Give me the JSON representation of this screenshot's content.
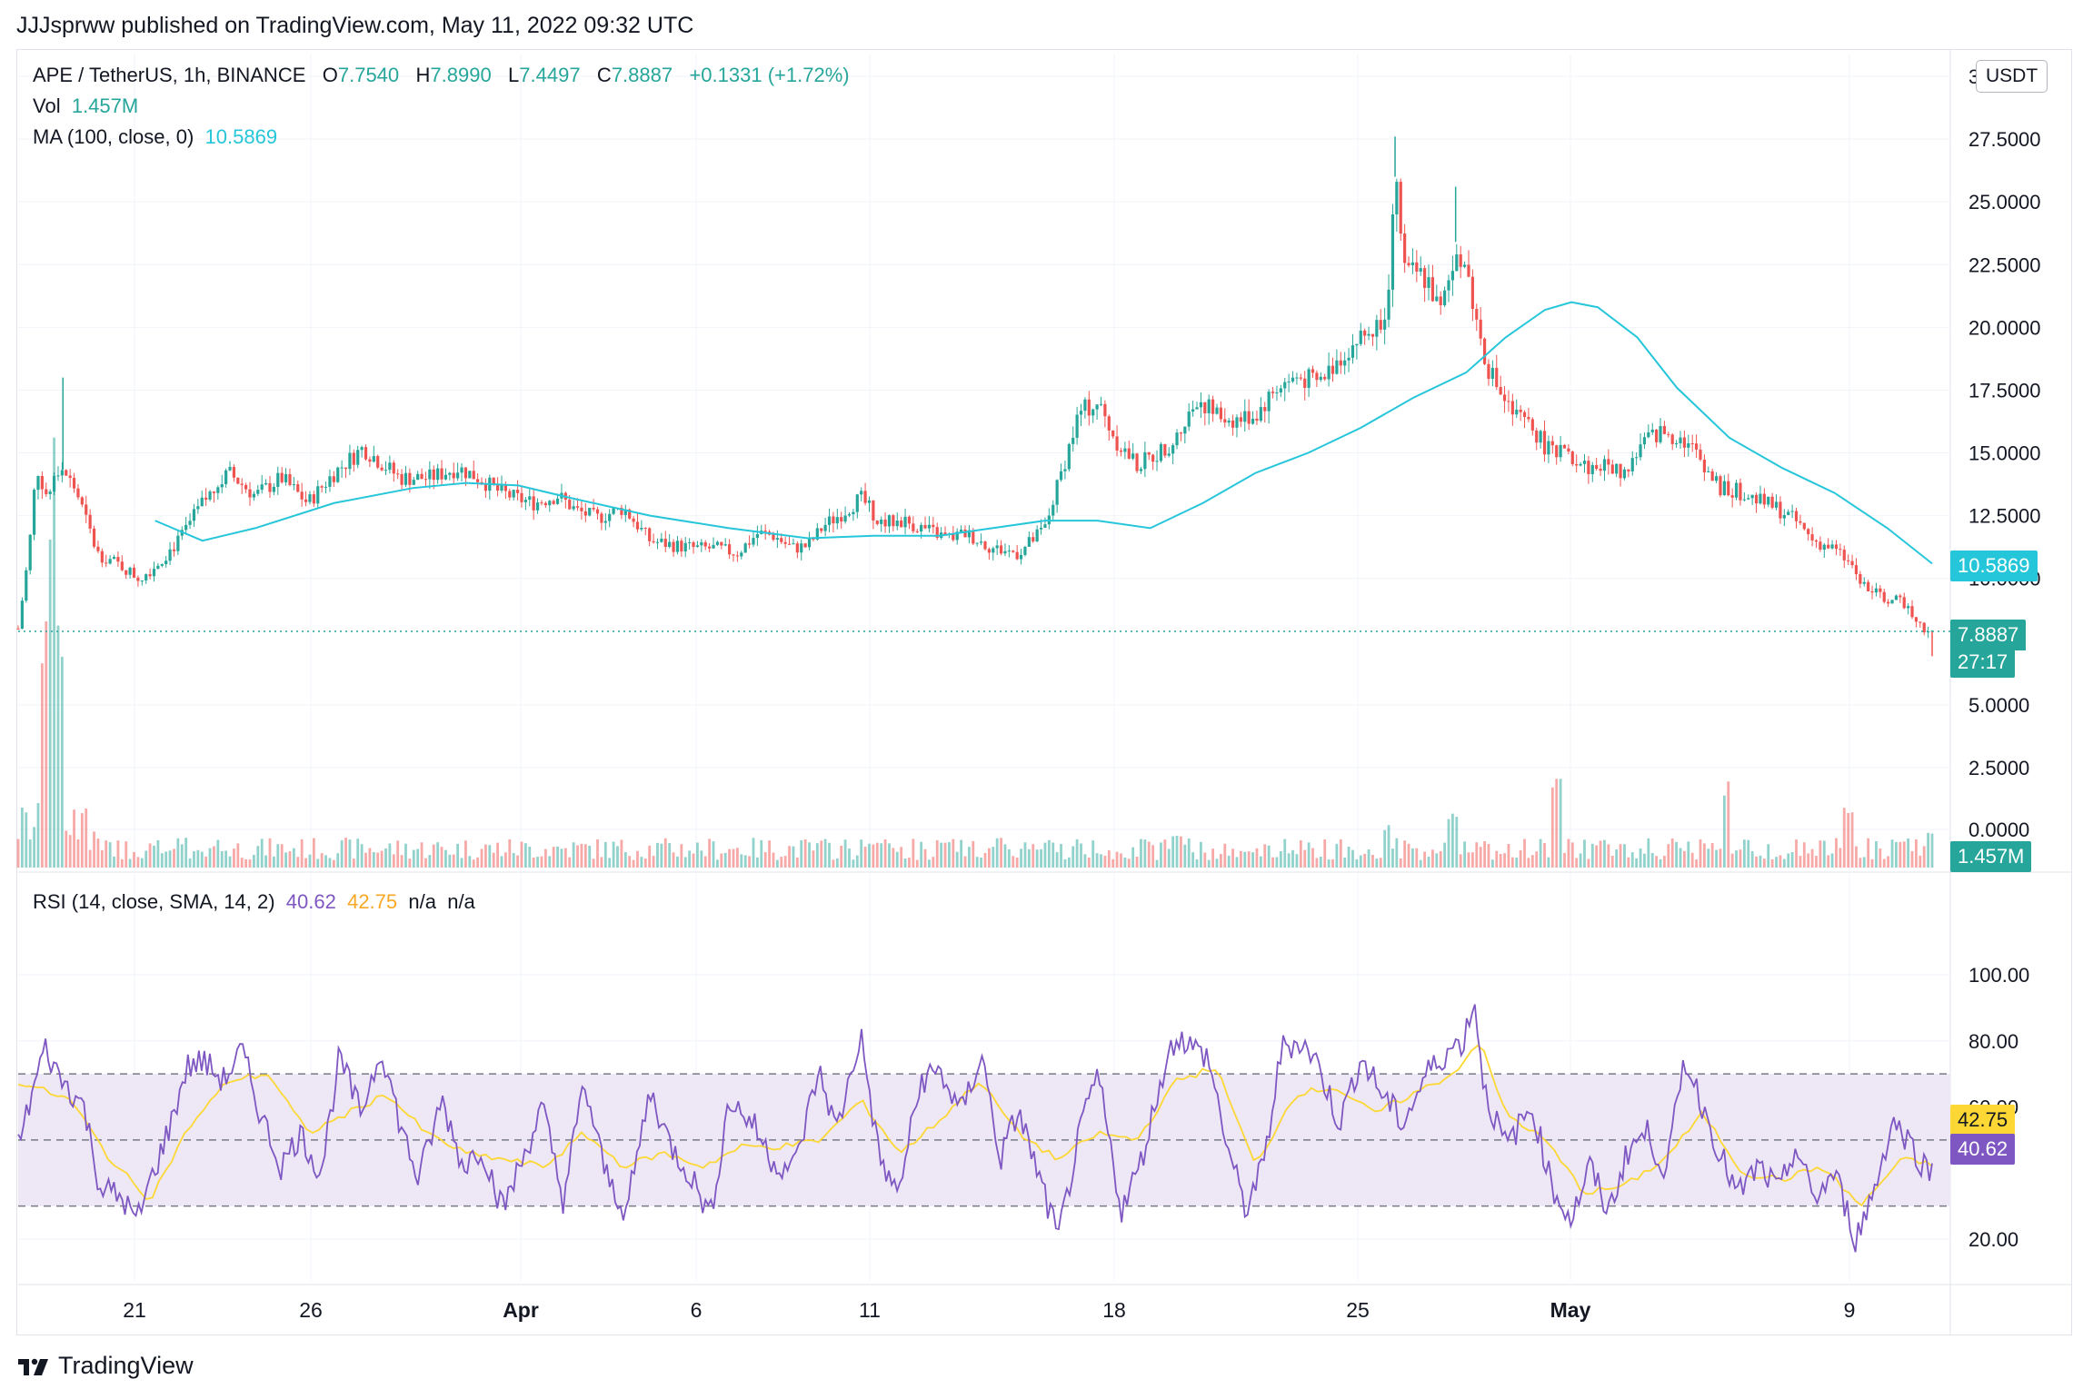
{
  "publisher": "JJJsprww published on TradingView.com, May 11, 2022 09:32 UTC",
  "legend": {
    "symbol": "APE / TetherUS, 1h, BINANCE",
    "o_label": "O",
    "o_value": "7.7540",
    "h_label": "H",
    "h_value": "7.8990",
    "l_label": "L",
    "l_value": "7.4497",
    "c_label": "C",
    "c_value": "7.8887",
    "change": "+0.1331 (+1.72%)",
    "vol_label": "Vol",
    "vol_value": "1.457M",
    "ma_label": "MA (100, close, 0)",
    "ma_value": "10.5869",
    "rsi_label": "RSI (14, close, SMA, 14, 2)",
    "rsi_value": "40.62",
    "rsi_ma_value": "42.75",
    "rsi_na1": "n/a",
    "rsi_na2": "n/a"
  },
  "unit_button": "USDT",
  "price_tags": {
    "ma": "10.5869",
    "last": "7.8887",
    "countdown": "27:17",
    "volume": "1.457M",
    "rsi_ma": "42.75",
    "rsi": "40.62"
  },
  "colors": {
    "up": "#26a69a",
    "down": "#ef5350",
    "ma": "#26c6da",
    "rsi": "#7e57c2",
    "rsi_ma": "#fdd835",
    "rsi_band": "#ede7f6"
  },
  "brand": "TradingView",
  "chart_data": [
    {
      "type": "candlestick",
      "title": "APE / TetherUS, 1h, BINANCE",
      "x_ticks": [
        "21",
        "26",
        "Apr",
        "6",
        "11",
        "18",
        "25",
        "May",
        "9"
      ],
      "y_ticks": [
        "30.0000",
        "27.5000",
        "25.0000",
        "22.5000",
        "20.0000",
        "17.5000",
        "15.0000",
        "12.5000",
        "10.0000",
        "5.0000",
        "2.5000",
        "0.0000"
      ],
      "ylim": [
        3,
        30
      ],
      "close_path": [
        [
          0,
          8
        ],
        [
          8,
          11
        ],
        [
          14,
          14.5
        ],
        [
          22,
          13.2
        ],
        [
          32,
          14.5
        ],
        [
          44,
          13.5
        ],
        [
          60,
          11
        ],
        [
          78,
          10.5
        ],
        [
          92,
          10
        ],
        [
          104,
          10.5
        ],
        [
          122,
          11.5
        ],
        [
          140,
          13
        ],
        [
          160,
          14.2
        ],
        [
          180,
          13.3
        ],
        [
          200,
          14
        ],
        [
          220,
          13
        ],
        [
          240,
          14.2
        ],
        [
          262,
          15.2
        ],
        [
          290,
          14
        ],
        [
          312,
          14
        ],
        [
          334,
          14.4
        ],
        [
          350,
          14
        ],
        [
          364,
          13.5
        ],
        [
          378,
          13.2
        ],
        [
          392,
          13
        ],
        [
          410,
          13.3
        ],
        [
          424,
          12.7
        ],
        [
          440,
          12.4
        ],
        [
          460,
          12.8
        ],
        [
          480,
          11.5
        ],
        [
          500,
          11.3
        ],
        [
          516,
          11.2
        ],
        [
          530,
          11.2
        ],
        [
          546,
          11
        ],
        [
          562,
          11.8
        ],
        [
          574,
          11.7
        ],
        [
          588,
          11.2
        ],
        [
          600,
          11.3
        ],
        [
          612,
          12.1
        ],
        [
          626,
          12.6
        ],
        [
          640,
          13.2
        ],
        [
          656,
          12.2
        ],
        [
          672,
          12.3
        ],
        [
          692,
          11.9
        ],
        [
          706,
          11.6
        ],
        [
          720,
          11.8
        ],
        [
          740,
          11.2
        ],
        [
          760,
          11
        ],
        [
          780,
          12
        ],
        [
          806,
          16.6
        ],
        [
          820,
          17
        ],
        [
          834,
          15.5
        ],
        [
          850,
          14.5
        ],
        [
          866,
          15
        ],
        [
          880,
          15.6
        ],
        [
          896,
          17.2
        ],
        [
          910,
          16.5
        ],
        [
          924,
          16.3
        ],
        [
          940,
          16.5
        ],
        [
          956,
          17.6
        ],
        [
          972,
          18
        ],
        [
          988,
          17.8
        ],
        [
          1004,
          18.8
        ],
        [
          1018,
          19.5
        ],
        [
          1032,
          20
        ],
        [
          1040,
          21
        ],
        [
          1046,
          26
        ],
        [
          1054,
          22
        ],
        [
          1062,
          22.2
        ],
        [
          1072,
          21.8
        ],
        [
          1080,
          20.5
        ],
        [
          1086,
          21.6
        ],
        [
          1092,
          23.4
        ],
        [
          1100,
          22.4
        ],
        [
          1108,
          20.2
        ],
        [
          1116,
          18.5
        ],
        [
          1126,
          17.4
        ],
        [
          1136,
          16.5
        ],
        [
          1150,
          16
        ],
        [
          1164,
          15
        ],
        [
          1178,
          14.9
        ],
        [
          1192,
          14.4
        ],
        [
          1206,
          14.5
        ],
        [
          1220,
          14.2
        ],
        [
          1236,
          15.5
        ],
        [
          1248,
          15.8
        ],
        [
          1264,
          15.6
        ],
        [
          1278,
          14.8
        ],
        [
          1292,
          13.6
        ],
        [
          1306,
          13.5
        ],
        [
          1322,
          13.1
        ],
        [
          1336,
          12.8
        ],
        [
          1350,
          12.3
        ],
        [
          1364,
          11.5
        ],
        [
          1378,
          11.2
        ],
        [
          1392,
          10.6
        ],
        [
          1404,
          9.6
        ],
        [
          1418,
          9.2
        ],
        [
          1434,
          9
        ],
        [
          1448,
          8
        ],
        [
          1454,
          7.89
        ]
      ],
      "ma_100_path": [
        [
          104,
          12.3
        ],
        [
          140,
          11.5
        ],
        [
          180,
          12
        ],
        [
          240,
          13
        ],
        [
          300,
          13.6
        ],
        [
          340,
          13.8
        ],
        [
          380,
          13.7
        ],
        [
          420,
          13.2
        ],
        [
          480,
          12.5
        ],
        [
          540,
          12
        ],
        [
          600,
          11.6
        ],
        [
          650,
          11.7
        ],
        [
          700,
          11.7
        ],
        [
          740,
          12
        ],
        [
          780,
          12.3
        ],
        [
          820,
          12.3
        ],
        [
          860,
          12
        ],
        [
          900,
          13
        ],
        [
          940,
          14.2
        ],
        [
          980,
          15
        ],
        [
          1020,
          16
        ],
        [
          1060,
          17.2
        ],
        [
          1100,
          18.2
        ],
        [
          1130,
          19.6
        ],
        [
          1160,
          20.7
        ],
        [
          1180,
          21
        ],
        [
          1200,
          20.8
        ],
        [
          1230,
          19.6
        ],
        [
          1260,
          17.6
        ],
        [
          1300,
          15.6
        ],
        [
          1340,
          14.4
        ],
        [
          1380,
          13.4
        ],
        [
          1420,
          12
        ],
        [
          1454,
          10.59
        ]
      ],
      "last_price": 7.8887,
      "ma_last": 10.5869
    },
    {
      "type": "bar",
      "title": "Vol",
      "last_value": "1.457M",
      "spikes": [
        [
          20,
          4.5
        ],
        [
          26,
          8
        ],
        [
          32,
          5
        ],
        [
          150,
          1.2
        ],
        [
          650,
          1
        ],
        [
          880,
          1.5
        ],
        [
          1040,
          2.1
        ],
        [
          1090,
          2.3
        ],
        [
          1168,
          4
        ],
        [
          1298,
          3.9
        ],
        [
          1390,
          2.7
        ],
        [
          1452,
          1.6
        ]
      ]
    },
    {
      "type": "line",
      "title": "RSI (14, close, SMA, 14, 2)",
      "y_ticks": [
        "100.00",
        "80.00",
        "60.00",
        "20.00"
      ],
      "ylim": [
        10,
        100
      ],
      "band": [
        30,
        70
      ],
      "midline": 50,
      "rsi_path": [
        [
          12,
          66
        ],
        [
          20,
          78
        ],
        [
          30,
          70
        ],
        [
          50,
          60
        ],
        [
          62,
          36
        ],
        [
          80,
          32
        ],
        [
          90,
          25
        ],
        [
          100,
          37
        ],
        [
          116,
          55
        ],
        [
          128,
          72
        ],
        [
          140,
          74
        ],
        [
          156,
          68
        ],
        [
          170,
          77
        ],
        [
          184,
          58
        ],
        [
          200,
          42
        ],
        [
          214,
          52
        ],
        [
          230,
          40
        ],
        [
          244,
          75
        ],
        [
          260,
          58
        ],
        [
          276,
          78
        ],
        [
          290,
          55
        ],
        [
          304,
          38
        ],
        [
          322,
          62
        ],
        [
          338,
          42
        ],
        [
          352,
          48
        ],
        [
          368,
          29
        ],
        [
          384,
          45
        ],
        [
          398,
          60
        ],
        [
          414,
          32
        ],
        [
          430,
          67
        ],
        [
          446,
          40
        ],
        [
          462,
          28
        ],
        [
          480,
          65
        ],
        [
          496,
          48
        ],
        [
          510,
          40
        ],
        [
          526,
          27
        ],
        [
          540,
          62
        ],
        [
          558,
          55
        ],
        [
          574,
          43
        ],
        [
          590,
          42
        ],
        [
          608,
          71
        ],
        [
          622,
          53
        ],
        [
          640,
          82
        ],
        [
          654,
          45
        ],
        [
          668,
          33
        ],
        [
          686,
          68
        ],
        [
          700,
          71
        ],
        [
          716,
          58
        ],
        [
          732,
          76
        ],
        [
          746,
          44
        ],
        [
          760,
          59
        ],
        [
          776,
          38
        ],
        [
          790,
          20
        ],
        [
          806,
          51
        ],
        [
          820,
          70
        ],
        [
          838,
          29
        ],
        [
          852,
          42
        ],
        [
          870,
          71
        ],
        [
          880,
          82
        ],
        [
          892,
          78
        ],
        [
          904,
          75
        ],
        [
          918,
          49
        ],
        [
          932,
          29
        ],
        [
          946,
          42
        ],
        [
          960,
          78
        ],
        [
          974,
          80
        ],
        [
          986,
          74
        ],
        [
          1004,
          55
        ],
        [
          1020,
          75
        ],
        [
          1036,
          64
        ],
        [
          1052,
          55
        ],
        [
          1070,
          70
        ],
        [
          1086,
          77
        ],
        [
          1098,
          80
        ],
        [
          1106,
          93
        ],
        [
          1114,
          65
        ],
        [
          1130,
          48
        ],
        [
          1150,
          60
        ],
        [
          1166,
          35
        ],
        [
          1180,
          26
        ],
        [
          1194,
          42
        ],
        [
          1208,
          28
        ],
        [
          1224,
          48
        ],
        [
          1238,
          52
        ],
        [
          1252,
          40
        ],
        [
          1266,
          75
        ],
        [
          1280,
          60
        ],
        [
          1294,
          45
        ],
        [
          1306,
          33
        ],
        [
          1322,
          42
        ],
        [
          1338,
          34
        ],
        [
          1350,
          48
        ],
        [
          1364,
          32
        ],
        [
          1380,
          40
        ],
        [
          1396,
          20
        ],
        [
          1410,
          35
        ],
        [
          1424,
          56
        ],
        [
          1436,
          50
        ],
        [
          1448,
          42
        ],
        [
          1454,
          40.62
        ]
      ],
      "rsi_ma_path": [
        [
          12,
          66
        ],
        [
          40,
          62
        ],
        [
          70,
          44
        ],
        [
          100,
          32
        ],
        [
          130,
          54
        ],
        [
          160,
          68
        ],
        [
          190,
          70
        ],
        [
          220,
          52
        ],
        [
          250,
          58
        ],
        [
          280,
          64
        ],
        [
          310,
          52
        ],
        [
          340,
          46
        ],
        [
          370,
          44
        ],
        [
          400,
          42
        ],
        [
          430,
          52
        ],
        [
          460,
          42
        ],
        [
          490,
          46
        ],
        [
          520,
          42
        ],
        [
          550,
          48
        ],
        [
          580,
          48
        ],
        [
          610,
          50
        ],
        [
          640,
          62
        ],
        [
          670,
          46
        ],
        [
          700,
          56
        ],
        [
          730,
          68
        ],
        [
          760,
          52
        ],
        [
          790,
          44
        ],
        [
          820,
          52
        ],
        [
          850,
          50
        ],
        [
          880,
          68
        ],
        [
          910,
          72
        ],
        [
          940,
          42
        ],
        [
          970,
          64
        ],
        [
          1000,
          66
        ],
        [
          1030,
          58
        ],
        [
          1060,
          64
        ],
        [
          1090,
          70
        ],
        [
          1110,
          80
        ],
        [
          1130,
          58
        ],
        [
          1160,
          50
        ],
        [
          1190,
          34
        ],
        [
          1220,
          36
        ],
        [
          1250,
          44
        ],
        [
          1280,
          58
        ],
        [
          1310,
          40
        ],
        [
          1340,
          38
        ],
        [
          1370,
          42
        ],
        [
          1400,
          30
        ],
        [
          1430,
          44
        ],
        [
          1454,
          42.75
        ]
      ],
      "last_rsi": 40.62,
      "last_rsi_ma": 42.75
    }
  ]
}
